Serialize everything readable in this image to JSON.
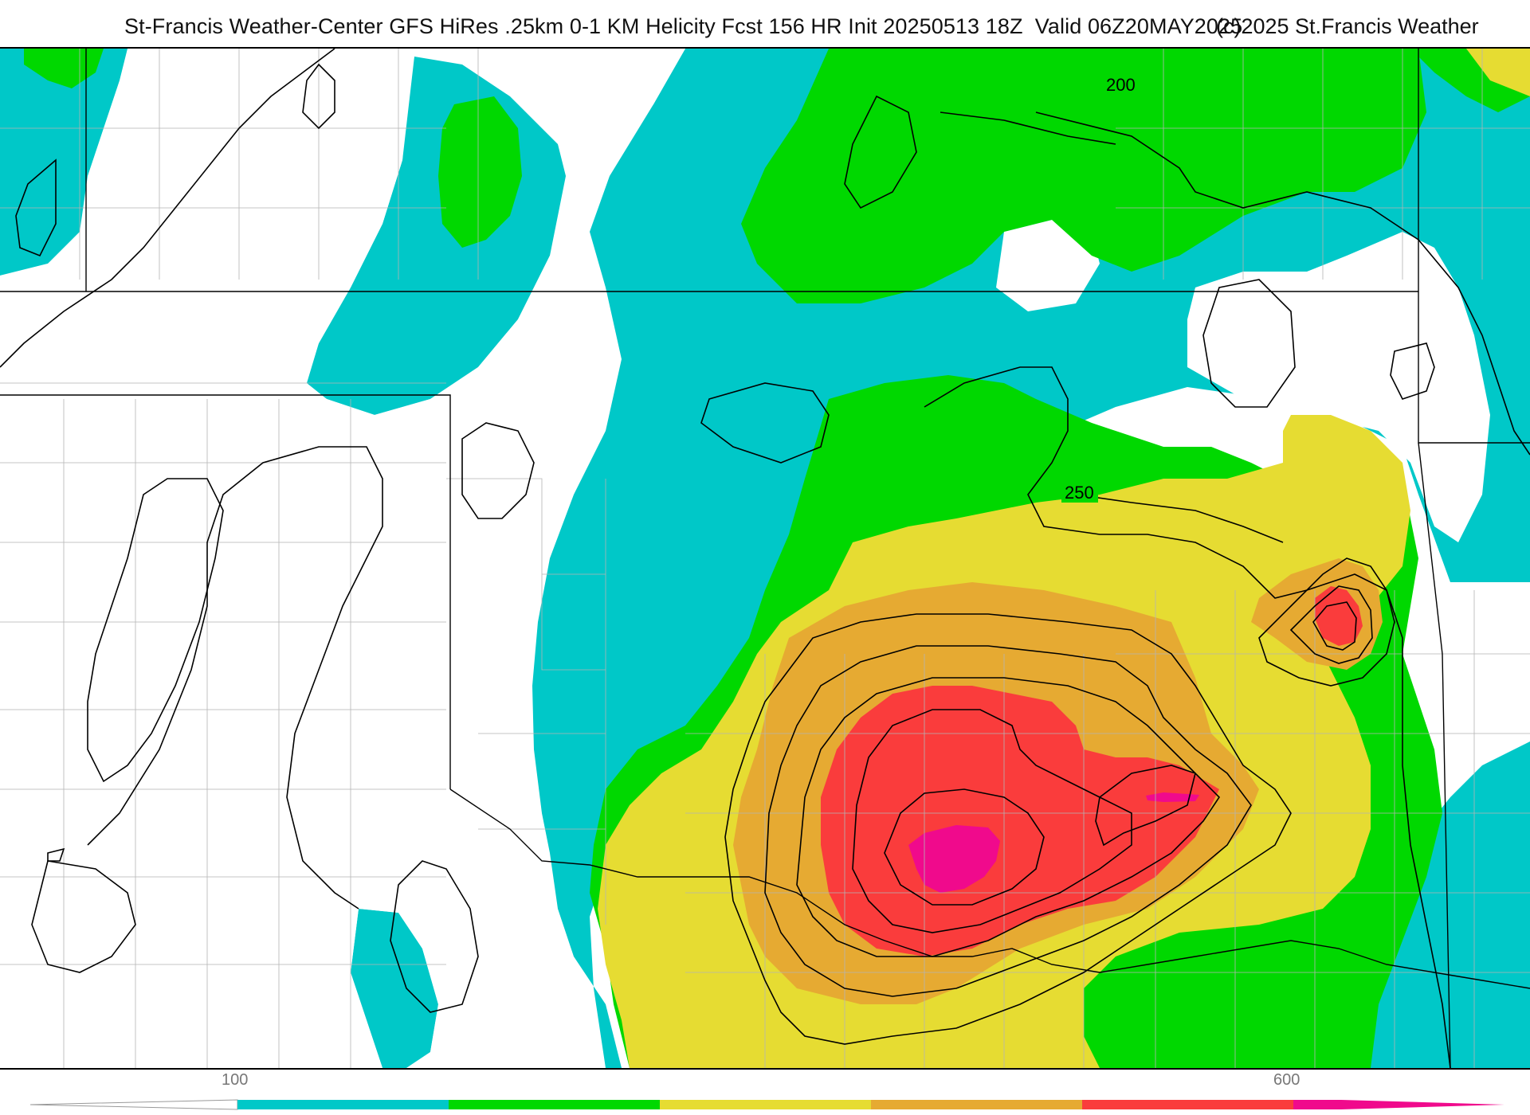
{
  "header": {
    "title": "St-Francis Weather-Center GFS HiRes .25km 0-1 KM Helicity Fcst 156 HR Init 20250513 18Z  Valid 06Z20MAY2025",
    "copyright": "(c)2025 St.Francis Weather"
  },
  "map": {
    "contour_labels": [
      "200",
      "250"
    ],
    "colors": {
      "background": "#ffffff",
      "level_cyan": "#00c8c8",
      "level_green": "#00d800",
      "level_yellow": "#e6dc32",
      "level_orange": "#e6aa32",
      "level_red": "#fa3c3c",
      "level_magenta": "#f00a8c",
      "contour_line": "#000000",
      "county_line": "#b4b4b4"
    }
  },
  "legend": {
    "tick_labels": [
      "100",
      "600"
    ],
    "bands": [
      "#00c8c8",
      "#00d800",
      "#e6dc32",
      "#e6aa32",
      "#fa3c3c",
      "#f00a8c"
    ]
  }
}
